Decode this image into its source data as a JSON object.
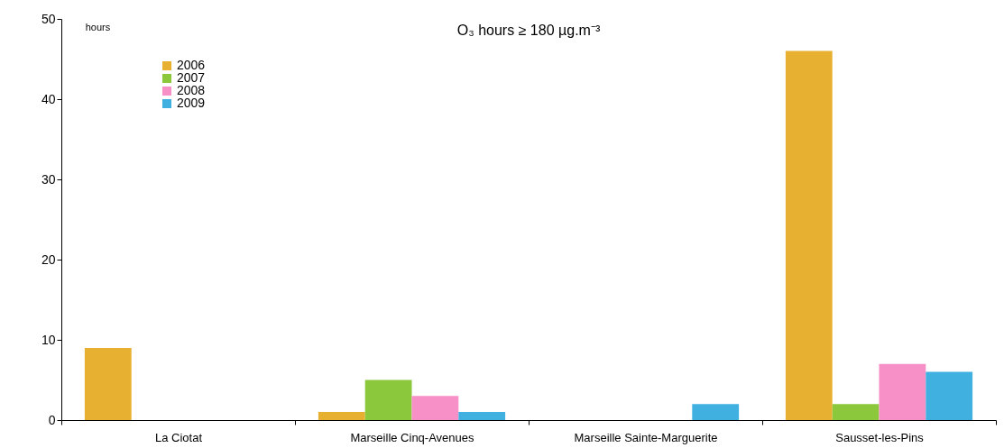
{
  "chart_data": {
    "type": "bar",
    "title": "O₃ hours ≥ 180 µg.m⁻³",
    "ylabel": "hours",
    "categories": [
      "La Ciotat",
      "Marseille Cinq-Avenues",
      "Marseille Sainte-Marguerite",
      "Sausset-les-Pins"
    ],
    "series": [
      {
        "name": "2006",
        "color": "#e8b030",
        "values": [
          9,
          1,
          0,
          46
        ]
      },
      {
        "name": "2007",
        "color": "#8cc83c",
        "values": [
          0,
          5,
          0,
          2
        ]
      },
      {
        "name": "2008",
        "color": "#f890c8",
        "values": [
          0,
          3,
          0,
          7
        ]
      },
      {
        "name": "2009",
        "color": "#40b0e0",
        "values": [
          0,
          1,
          2,
          6
        ]
      }
    ],
    "ylim": [
      0,
      50
    ],
    "yticks": [
      0,
      10,
      20,
      30,
      40,
      50
    ],
    "grid": false,
    "legend": "top left"
  }
}
